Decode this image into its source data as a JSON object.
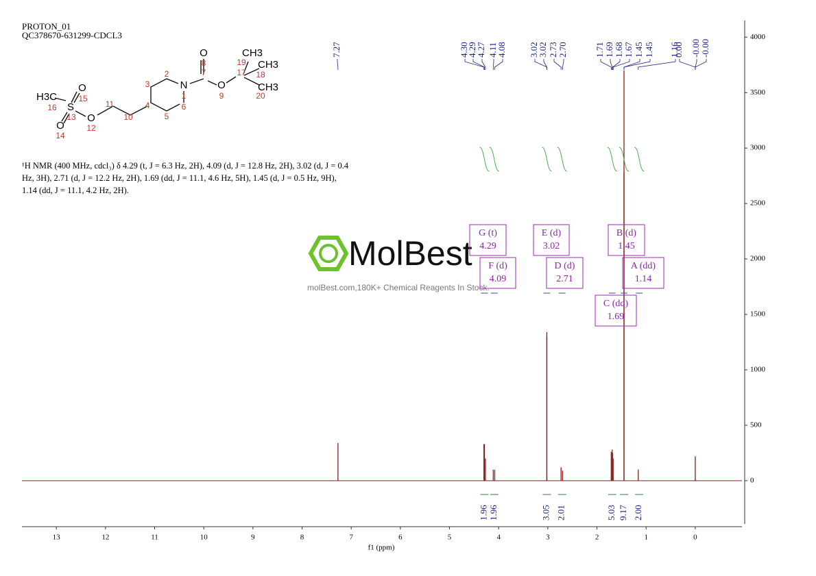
{
  "header": [
    "PROTON_01",
    "QC378670-631299-CDCL3"
  ],
  "structure": {
    "atoms": [
      "O",
      "N",
      "O",
      "CH3",
      "CH3",
      "CH3",
      "H3C",
      "S",
      "O",
      "O",
      "O"
    ],
    "locants": [
      "8",
      "7",
      "1",
      "2",
      "3",
      "4",
      "5",
      "6",
      "9",
      "17",
      "19",
      "18",
      "20",
      "16",
      "13",
      "15",
      "14",
      "12",
      "11",
      "10"
    ]
  },
  "description": [
    "¹H NMR (400 MHz, cdcl₃) δ 4.29 (t, J = 6.3 Hz, 2H), 4.09 (d, J = 12.8 Hz, 2H), 3.02 (d, J = 0.4",
    "Hz, 3H), 2.71 (d, J = 12.2 Hz, 2H), 1.69 (dd, J = 11.1, 4.6 Hz, 5H), 1.45 (d, J = 0.5 Hz, 9H),",
    "1.14 (dd, J = 11.1, 4.2 Hz, 2H)."
  ],
  "watermark": {
    "brand": "MolBest",
    "tagline": "molBest.com,180K+ Chemical Reagents In Stock."
  },
  "chart_data": {
    "type": "spectrum",
    "xlabel": "f1 (ppm)",
    "xlim": [
      13.7,
      -0.95
    ],
    "xticks": [
      13,
      12,
      11,
      10,
      9,
      8,
      7,
      6,
      5,
      4,
      3,
      2,
      1,
      0
    ],
    "ylim": [
      -390,
      4150
    ],
    "yticks": [
      0,
      500,
      1000,
      1500,
      2000,
      2500,
      3000,
      3500,
      4000
    ],
    "color": "#8b1a1a",
    "peaks": {
      "ppm": [
        7.27,
        4.3,
        4.29,
        4.27,
        4.11,
        4.08,
        3.02,
        3.02,
        2.73,
        2.7,
        1.71,
        1.69,
        1.68,
        1.67,
        1.45,
        1.45,
        1.16,
        0,
        0,
        0
      ],
      "values": [
        340,
        330,
        330,
        200,
        100,
        100,
        1340,
        1300,
        120,
        90,
        260,
        280,
        250,
        200,
        3700,
        2780,
        100,
        220,
        10,
        10
      ],
      "ppm_labels": [
        "7.27",
        "4.30",
        "4.29",
        "4.27",
        "4.11",
        "4.08",
        "3.02",
        "3.02",
        "2.73",
        "2.70",
        "1.71",
        "1.69",
        "1.68",
        "1.67",
        "1.45",
        "1.45",
        "1.16",
        "0.00",
        "-0.00",
        "-0.00"
      ]
    },
    "multiplets": [
      {
        "label": "G (t)",
        "shift": 4.29
      },
      {
        "label": "F (d)",
        "shift": 4.09
      },
      {
        "label": "E (d)",
        "shift": 3.02
      },
      {
        "label": "D (d)",
        "shift": 2.71
      },
      {
        "label": "B (d)",
        "shift": 1.45
      },
      {
        "label": "A (dd)",
        "shift": 1.14
      },
      {
        "label": "C (dd)",
        "shift": 1.69
      }
    ],
    "integrals": {
      "ppm": [
        4.29,
        4.09,
        3.02,
        2.71,
        1.69,
        1.45,
        1.14
      ],
      "values": [
        1.96,
        1.96,
        3.05,
        2.01,
        5.03,
        9.17,
        2.0
      ],
      "value_labels": [
        "1.96",
        "1.96",
        "3.05",
        "2.01",
        "5.03",
        "9.17",
        "2.00"
      ]
    }
  }
}
